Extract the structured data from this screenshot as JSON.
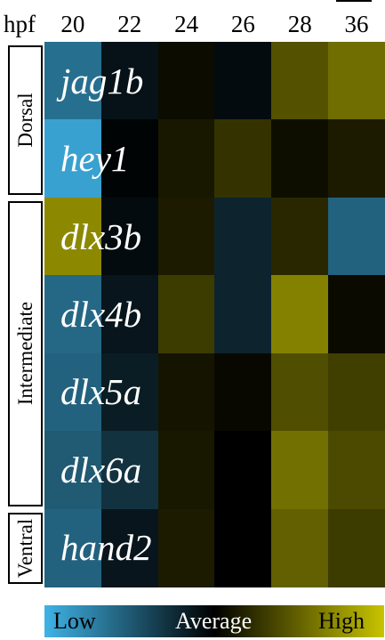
{
  "chart_data": {
    "type": "heatmap",
    "x_header": "hpf",
    "columns": [
      "20",
      "22",
      "24",
      "26",
      "28",
      "36"
    ],
    "rows": [
      "jag1b",
      "hey1",
      "dlx3b",
      "dlx4b",
      "dlx5a",
      "dlx6a",
      "hand2"
    ],
    "values": [
      [
        -0.62,
        -0.1,
        0.06,
        -0.06,
        0.42,
        0.56
      ],
      [
        -0.9,
        -0.02,
        0.12,
        0.26,
        0.07,
        0.14
      ],
      [
        0.7,
        -0.06,
        0.14,
        -0.2,
        0.2,
        -0.55
      ],
      [
        -0.58,
        -0.12,
        0.3,
        -0.2,
        0.66,
        0.05
      ],
      [
        -0.55,
        -0.16,
        0.1,
        0.04,
        0.4,
        0.32
      ],
      [
        -0.5,
        -0.28,
        0.12,
        0.0,
        0.57,
        0.38
      ],
      [
        -0.55,
        -0.12,
        0.14,
        0.0,
        0.49,
        0.3
      ]
    ],
    "regions": [
      {
        "label": "Dorsal",
        "rows": [
          0,
          1
        ]
      },
      {
        "label": "Intermediate",
        "rows": [
          2,
          5
        ]
      },
      {
        "label": "Ventral",
        "rows": [
          6,
          6
        ]
      }
    ],
    "legend": {
      "low": "Low",
      "mid": "Average",
      "high": "High"
    },
    "color_scale": {
      "low": "#3fb3e6",
      "mid": "#000000",
      "high": "#c8c400"
    }
  }
}
